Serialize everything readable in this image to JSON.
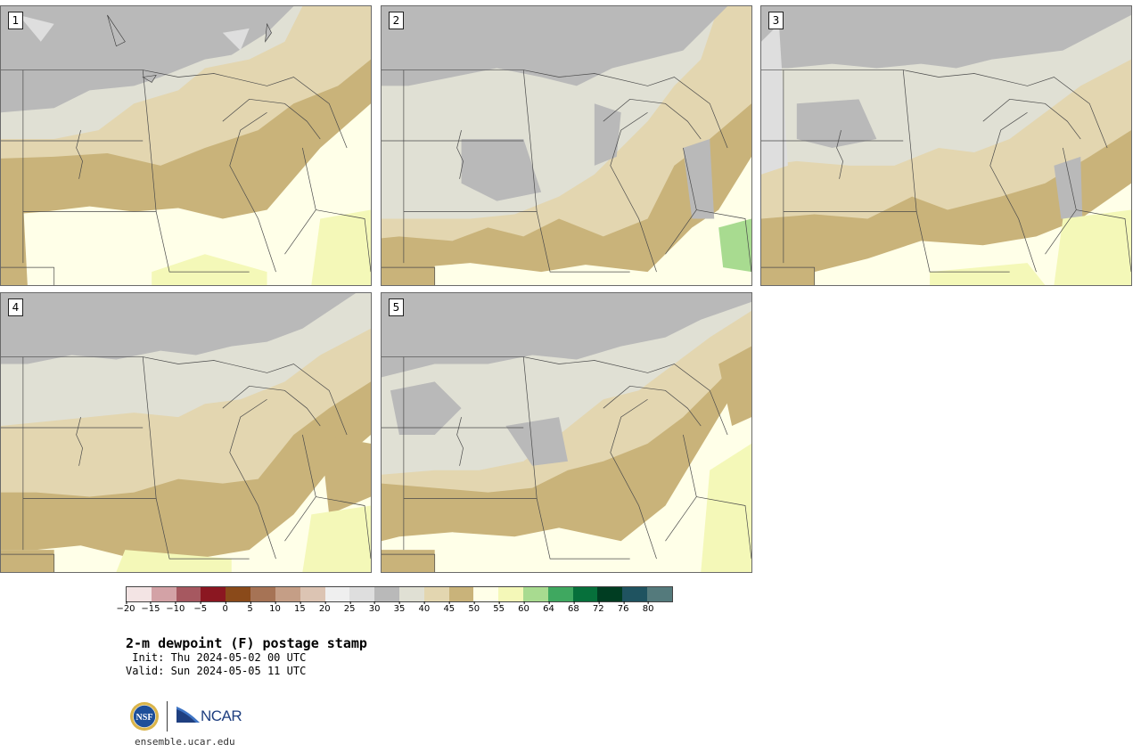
{
  "panels": [
    {
      "id": "1",
      "label": "1"
    },
    {
      "id": "2",
      "label": "2"
    },
    {
      "id": "3",
      "label": "3"
    },
    {
      "id": "4",
      "label": "4"
    },
    {
      "id": "5",
      "label": "5"
    }
  ],
  "colorbar": {
    "tick_labels": [
      "−20",
      "−15",
      "−10",
      "−5",
      "0",
      "5",
      "10",
      "15",
      "20",
      "25",
      "30",
      "35",
      "40",
      "45",
      "50",
      "55",
      "60",
      "64",
      "68",
      "72",
      "76",
      "80"
    ],
    "colors": [
      "#f3e4e4",
      "#d3a2a6",
      "#a65860",
      "#8b1721",
      "#8a4a1a",
      "#a67355",
      "#c59e86",
      "#dcc4b3",
      "#efefef",
      "#dedede",
      "#b9b9b9",
      "#e0e0d4",
      "#e3d6b0",
      "#c9b37a",
      "#ffffe8",
      "#f4f8b8",
      "#a8db90",
      "#3fa860",
      "#06703b",
      "#003d22",
      "#1f5360",
      "#547a7c"
    ]
  },
  "title": "2-m dewpoint (F) postage stamp",
  "init": " Init: Thu 2024-05-02 00 UTC",
  "valid": "Valid: Sun 2024-05-05 11 UTC",
  "logos": {
    "ncar_text": "NCAR",
    "nsf_text": "NSF"
  },
  "url": "ensemble.ucar.edu"
}
